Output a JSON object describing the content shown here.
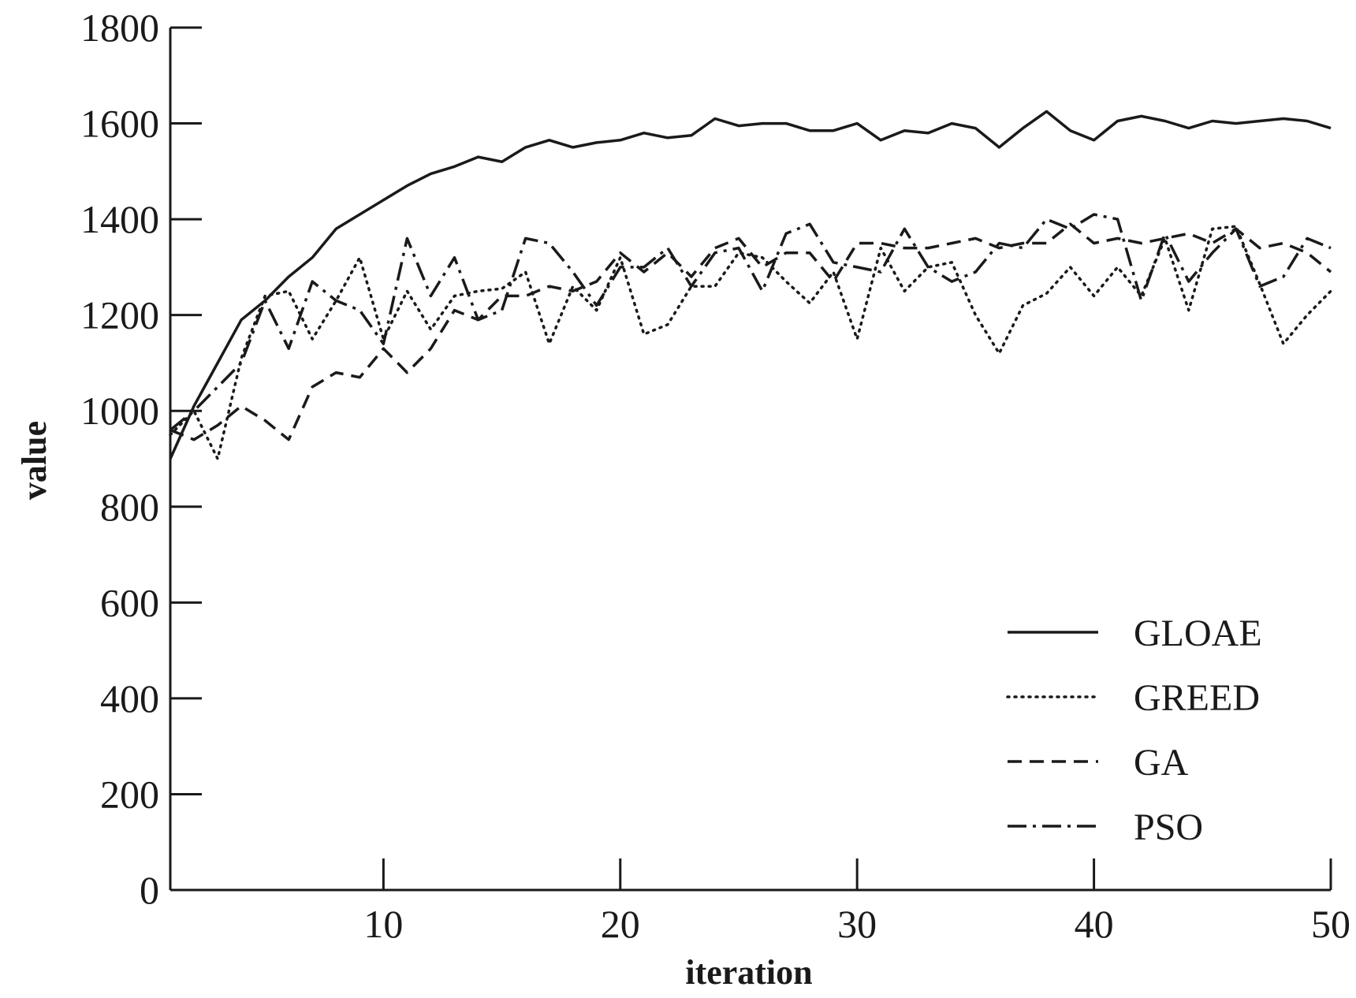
{
  "chart_data": {
    "type": "line",
    "title": "",
    "xlabel": "iteration",
    "ylabel": "value",
    "xlim": [
      1,
      50
    ],
    "ylim": [
      0,
      1800
    ],
    "x_ticks": [
      10,
      20,
      30,
      40,
      50
    ],
    "y_ticks": [
      0,
      200,
      400,
      600,
      800,
      1000,
      1200,
      1400,
      1600,
      1800
    ],
    "grid": false,
    "legend_position": "bottom-right",
    "x": [
      1,
      2,
      3,
      4,
      5,
      6,
      7,
      8,
      9,
      10,
      11,
      12,
      13,
      14,
      15,
      16,
      17,
      18,
      19,
      20,
      21,
      22,
      23,
      24,
      25,
      26,
      27,
      28,
      29,
      30,
      31,
      32,
      33,
      34,
      35,
      36,
      37,
      38,
      39,
      40,
      41,
      42,
      43,
      44,
      45,
      46,
      47,
      48,
      49,
      50
    ],
    "series": [
      {
        "name": "GLOAE",
        "style": "solid",
        "color": "#1a1a1a",
        "values": [
          900,
          1010,
          1100,
          1190,
          1230,
          1280,
          1320,
          1380,
          1410,
          1440,
          1470,
          1495,
          1510,
          1530,
          1520,
          1550,
          1565,
          1550,
          1560,
          1565,
          1580,
          1570,
          1575,
          1610,
          1595,
          1600,
          1600,
          1585,
          1585,
          1600,
          1565,
          1585,
          1580,
          1600,
          1590,
          1550,
          1590,
          1625,
          1585,
          1565,
          1605,
          1615,
          1605,
          1590,
          1605,
          1600,
          1605,
          1610,
          1605,
          1590
        ]
      },
      {
        "name": "GREED",
        "style": "dotted",
        "color": "#1a1a1a",
        "values": [
          950,
          1000,
          900,
          1110,
          1240,
          1250,
          1150,
          1230,
          1320,
          1150,
          1250,
          1170,
          1240,
          1250,
          1255,
          1290,
          1140,
          1260,
          1210,
          1320,
          1160,
          1180,
          1260,
          1260,
          1330,
          1320,
          1270,
          1225,
          1290,
          1150,
          1340,
          1250,
          1300,
          1310,
          1200,
          1120,
          1220,
          1245,
          1300,
          1240,
          1300,
          1240,
          1360,
          1210,
          1380,
          1385,
          1265,
          1140,
          1200,
          1250
        ]
      },
      {
        "name": "GA",
        "style": "dashed",
        "color": "#1a1a1a",
        "values": [
          960,
          940,
          970,
          1010,
          980,
          940,
          1050,
          1080,
          1070,
          1130,
          1080,
          1130,
          1210,
          1190,
          1240,
          1240,
          1260,
          1250,
          1270,
          1330,
          1290,
          1330,
          1280,
          1340,
          1360,
          1300,
          1330,
          1330,
          1270,
          1350,
          1350,
          1340,
          1340,
          1350,
          1360,
          1340,
          1350,
          1350,
          1390,
          1350,
          1360,
          1350,
          1360,
          1370,
          1350,
          1380,
          1340,
          1350,
          1330,
          1290
        ]
      },
      {
        "name": "PSO",
        "style": "dashdot",
        "color": "#1a1a1a",
        "values": [
          960,
          1000,
          1050,
          1100,
          1230,
          1130,
          1270,
          1230,
          1210,
          1140,
          1360,
          1240,
          1320,
          1190,
          1210,
          1360,
          1350,
          1290,
          1220,
          1300,
          1300,
          1340,
          1260,
          1330,
          1340,
          1250,
          1370,
          1390,
          1310,
          1300,
          1290,
          1380,
          1300,
          1270,
          1290,
          1350,
          1340,
          1400,
          1380,
          1410,
          1400,
          1230,
          1370,
          1270,
          1330,
          1380,
          1260,
          1280,
          1360,
          1340
        ]
      }
    ]
  }
}
